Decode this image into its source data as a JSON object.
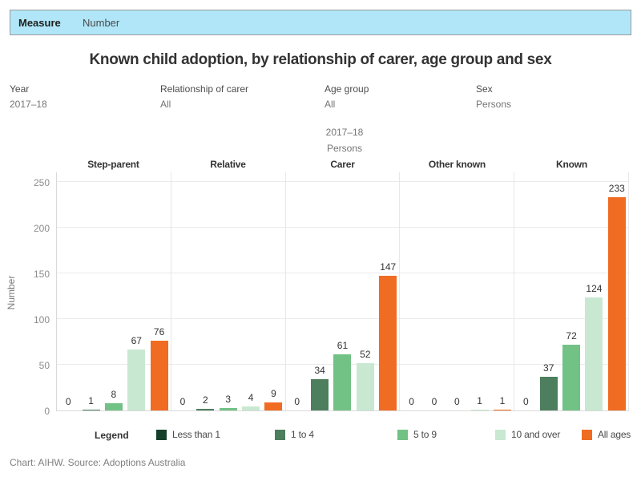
{
  "measure_bar": {
    "label": "Measure",
    "value": "Number"
  },
  "title": "Known child adoption, by relationship of carer, age group and sex",
  "filters": [
    {
      "label": "Year",
      "value": "2017–18"
    },
    {
      "label": "Relationship of carer",
      "value": "All"
    },
    {
      "label": "Age group",
      "value": "All"
    },
    {
      "label": "Sex",
      "value": "Persons"
    }
  ],
  "subtitle": [
    "2017–18",
    "Persons"
  ],
  "chart_data": {
    "type": "bar",
    "title": "Known child adoption, by relationship of carer, age group and sex",
    "xlabel": "",
    "ylabel": "Number",
    "ylim": [
      0,
      250
    ],
    "yticks": [
      0,
      50,
      100,
      150,
      200,
      250
    ],
    "grid": true,
    "legend_position": "bottom",
    "panels": [
      "Step-parent",
      "Relative",
      "Carer",
      "Other known",
      "Known"
    ],
    "series": [
      {
        "name": "Less than 1",
        "color": "#14402a",
        "values": [
          0,
          0,
          0,
          0,
          0
        ]
      },
      {
        "name": "1 to 4",
        "color": "#4d7e5e",
        "values": [
          1,
          2,
          34,
          0,
          37
        ]
      },
      {
        "name": "5 to 9",
        "color": "#72c185",
        "values": [
          8,
          3,
          61,
          0,
          72
        ]
      },
      {
        "name": "10 and over",
        "color": "#c9e8d1",
        "values": [
          67,
          4,
          52,
          1,
          124
        ]
      },
      {
        "name": "All ages",
        "color": "#f06c23",
        "values": [
          76,
          9,
          147,
          1,
          233
        ]
      }
    ]
  },
  "legend": {
    "label": "Legend",
    "items": [
      {
        "name": "Less than 1",
        "color": "#14402a"
      },
      {
        "name": "1 to 4",
        "color": "#4d7e5e"
      },
      {
        "name": "5 to 9",
        "color": "#72c185"
      },
      {
        "name": "10 and over",
        "color": "#c9e8d1"
      },
      {
        "name": "All ages",
        "color": "#f06c23"
      }
    ],
    "item_lefts": [
      195,
      343,
      496,
      618,
      726
    ]
  },
  "footer": "Chart: AIHW. Source: Adoptions Australia"
}
